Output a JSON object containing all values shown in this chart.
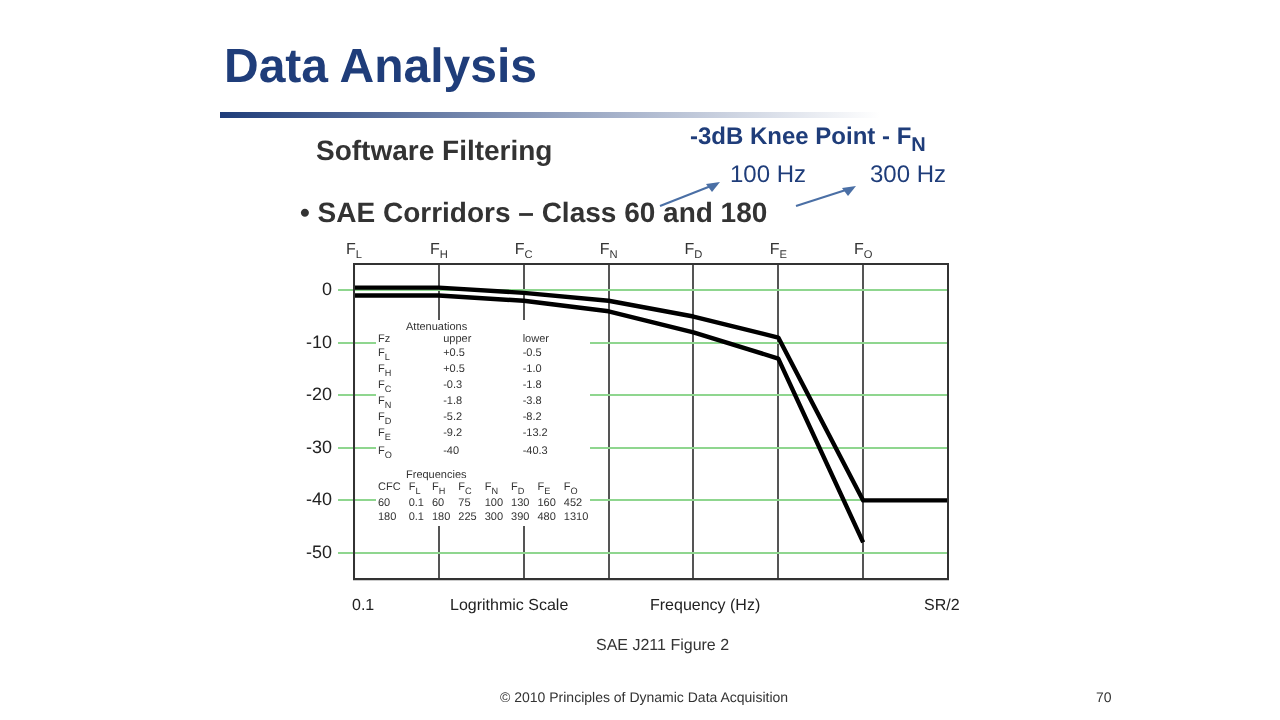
{
  "chart_data": {
    "type": "line",
    "title": "Data Analysis",
    "subtitle": "Software Filtering",
    "xlabel": "Frequency (Hz)",
    "categories": [
      "F$_{L}$",
      "F$_{H}$",
      "F$_{C}$",
      "F$_{N}$",
      "F$_{D}$",
      "F$_{E}$",
      "F$_{O}$",
      null
    ],
    "series": [
      {
        "color": "#000000",
        "values": [
          0.5,
          0.5,
          -0.5,
          -2,
          -5,
          -9,
          -40,
          -40
        ]
      },
      {
        "color": "#000000",
        "values": [
          -1,
          -1,
          -2,
          -4,
          -8,
          -13,
          -48,
          null
        ]
      }
    ],
    "ylim": [
      -55,
      5
    ],
    "yticks": [
      0,
      -10,
      -20,
      -30,
      -40,
      -50
    ],
    "grid": true,
    "legend": false,
    "marker": "none",
    "line_style": "solid",
    "annotations": [
      "• SAE Corridors – Class 60 and 180",
      "-3dB Knee Point - F$_{N}$",
      "100 Hz",
      "300 Hz",
      "Attenuations",
      "Fz upper lower",
      "F$_{L}$ +0.5 -0.5",
      "F$_{H}$ +0.5 -1.0",
      "F$_{C}$ -0.3 -1.8",
      "F$_{N}$ -1.8 -3.8",
      "F$_{D}$ -5.2 -8.2",
      "F$_{E}$ -9.2 -13.2",
      "F$_{O}$ -40 -40.3",
      "Frequencies",
      "CFC F$_{L}$ F$_{H}$ F$_{C}$ F$_{N}$ F$_{D}$ F$_{E}$ F$_{O}$",
      "60 0.1 60 75 100 130 160 452",
      "180 0.1 180 225 300 390 480 1310",
      "Logrithmic Scale",
      "SAE J211 Figure 2",
      "© 2010 Principles of Dynamic Data Acquisition",
      "70",
      "0.1",
      "SR/2"
    ]
  }
}
